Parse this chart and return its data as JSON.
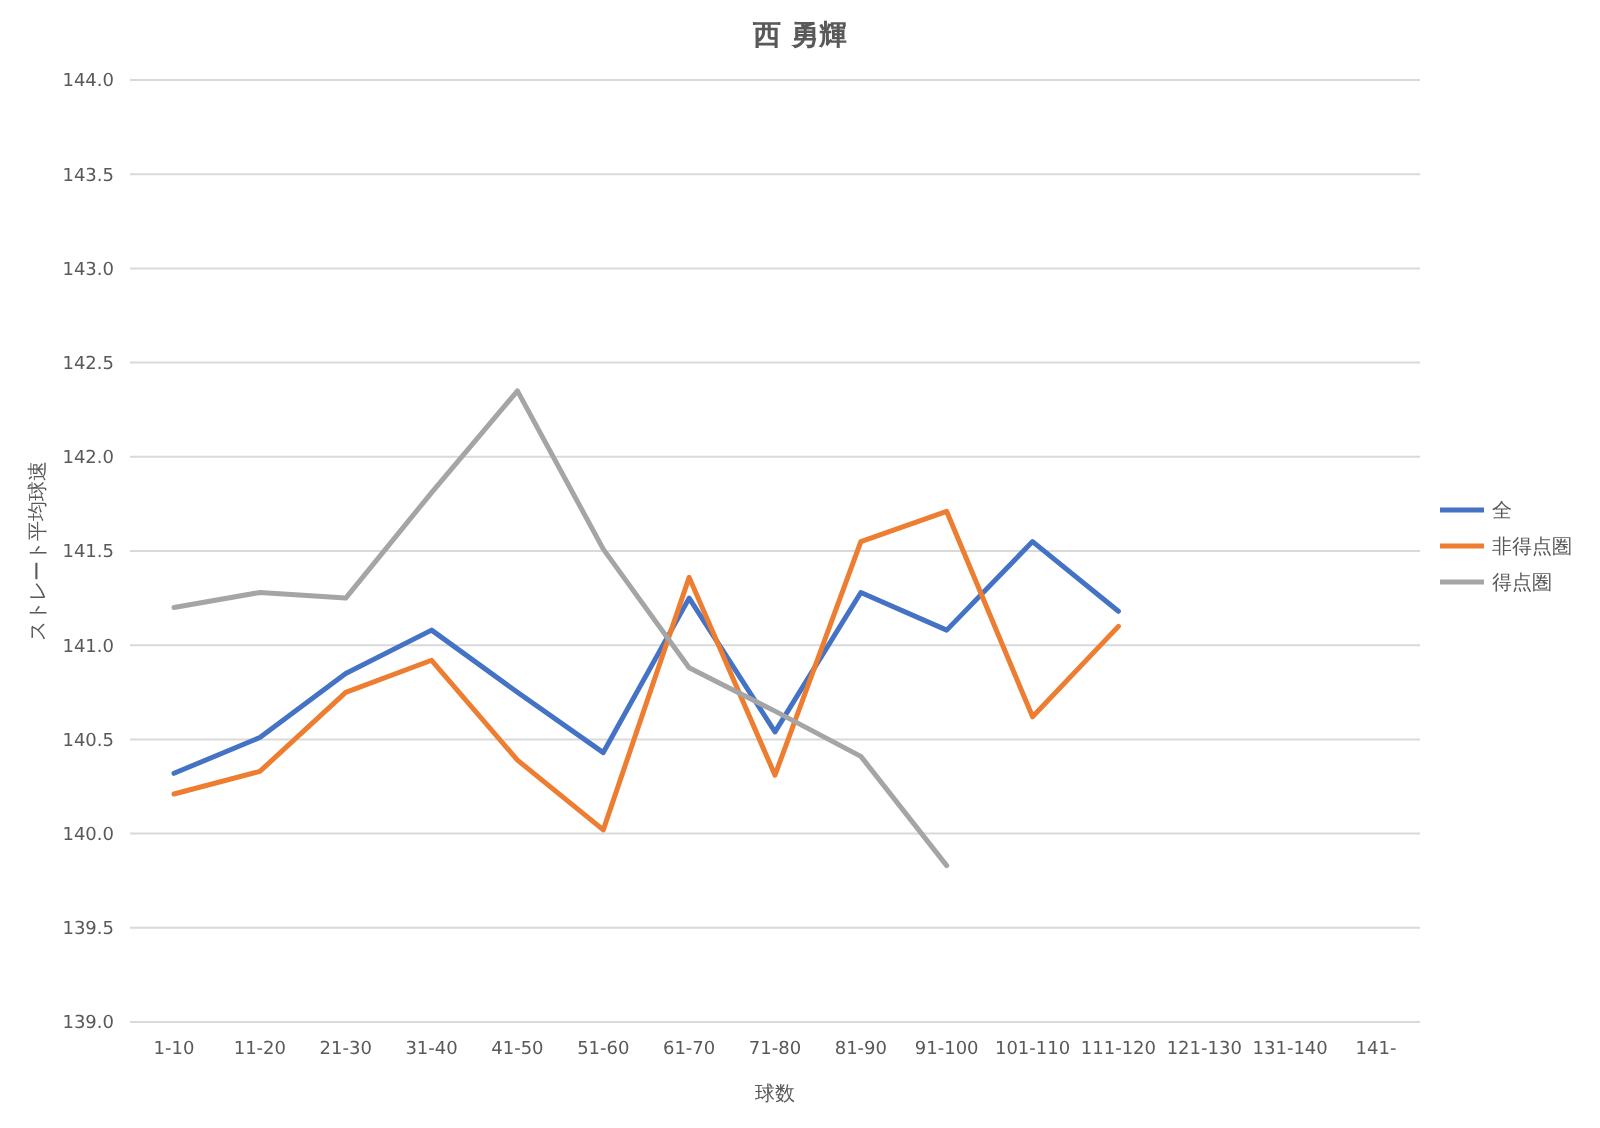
{
  "chart_data": {
    "type": "line",
    "title": "西 勇輝",
    "xlabel": "球数",
    "ylabel": "ストレート平均球速",
    "categories": [
      "1-10",
      "11-20",
      "21-30",
      "31-40",
      "41-50",
      "51-60",
      "61-70",
      "71-80",
      "81-90",
      "91-100",
      "101-110",
      "111-120",
      "121-130",
      "131-140",
      "141-"
    ],
    "series": [
      {
        "name": "全",
        "color": "#4472c4",
        "values": [
          140.32,
          140.51,
          140.85,
          141.08,
          140.75,
          140.43,
          141.25,
          140.54,
          141.28,
          141.08,
          141.55,
          141.18,
          null,
          null,
          null
        ]
      },
      {
        "name": "非得点圏",
        "color": "#ed7d31",
        "values": [
          140.21,
          140.33,
          140.75,
          140.92,
          140.39,
          140.02,
          141.36,
          140.31,
          141.55,
          141.71,
          140.62,
          141.1,
          null,
          null,
          null
        ]
      },
      {
        "name": "得点圏",
        "color": "#a5a5a5",
        "values": [
          141.2,
          141.28,
          141.25,
          141.81,
          142.35,
          141.51,
          140.88,
          140.65,
          140.41,
          139.83,
          null,
          null,
          null,
          null,
          null
        ]
      }
    ],
    "ylim": [
      139,
      144
    ],
    "yticks": [
      {
        "value": 139,
        "label": "139.0"
      },
      {
        "value": 139.5,
        "label": "139.5"
      },
      {
        "value": 140,
        "label": "140.0"
      },
      {
        "value": 140.5,
        "label": "140.5"
      },
      {
        "value": 141,
        "label": "141.0"
      },
      {
        "value": 141.5,
        "label": "141.5"
      },
      {
        "value": 142,
        "label": "142.0"
      },
      {
        "value": 142.5,
        "label": "142.5"
      },
      {
        "value": 143,
        "label": "143.0"
      },
      {
        "value": 143.5,
        "label": "143.5"
      },
      {
        "value": 144,
        "label": "144.0"
      }
    ],
    "grid": "y",
    "legend": "right",
    "marker": "none",
    "line_style": "solid"
  }
}
